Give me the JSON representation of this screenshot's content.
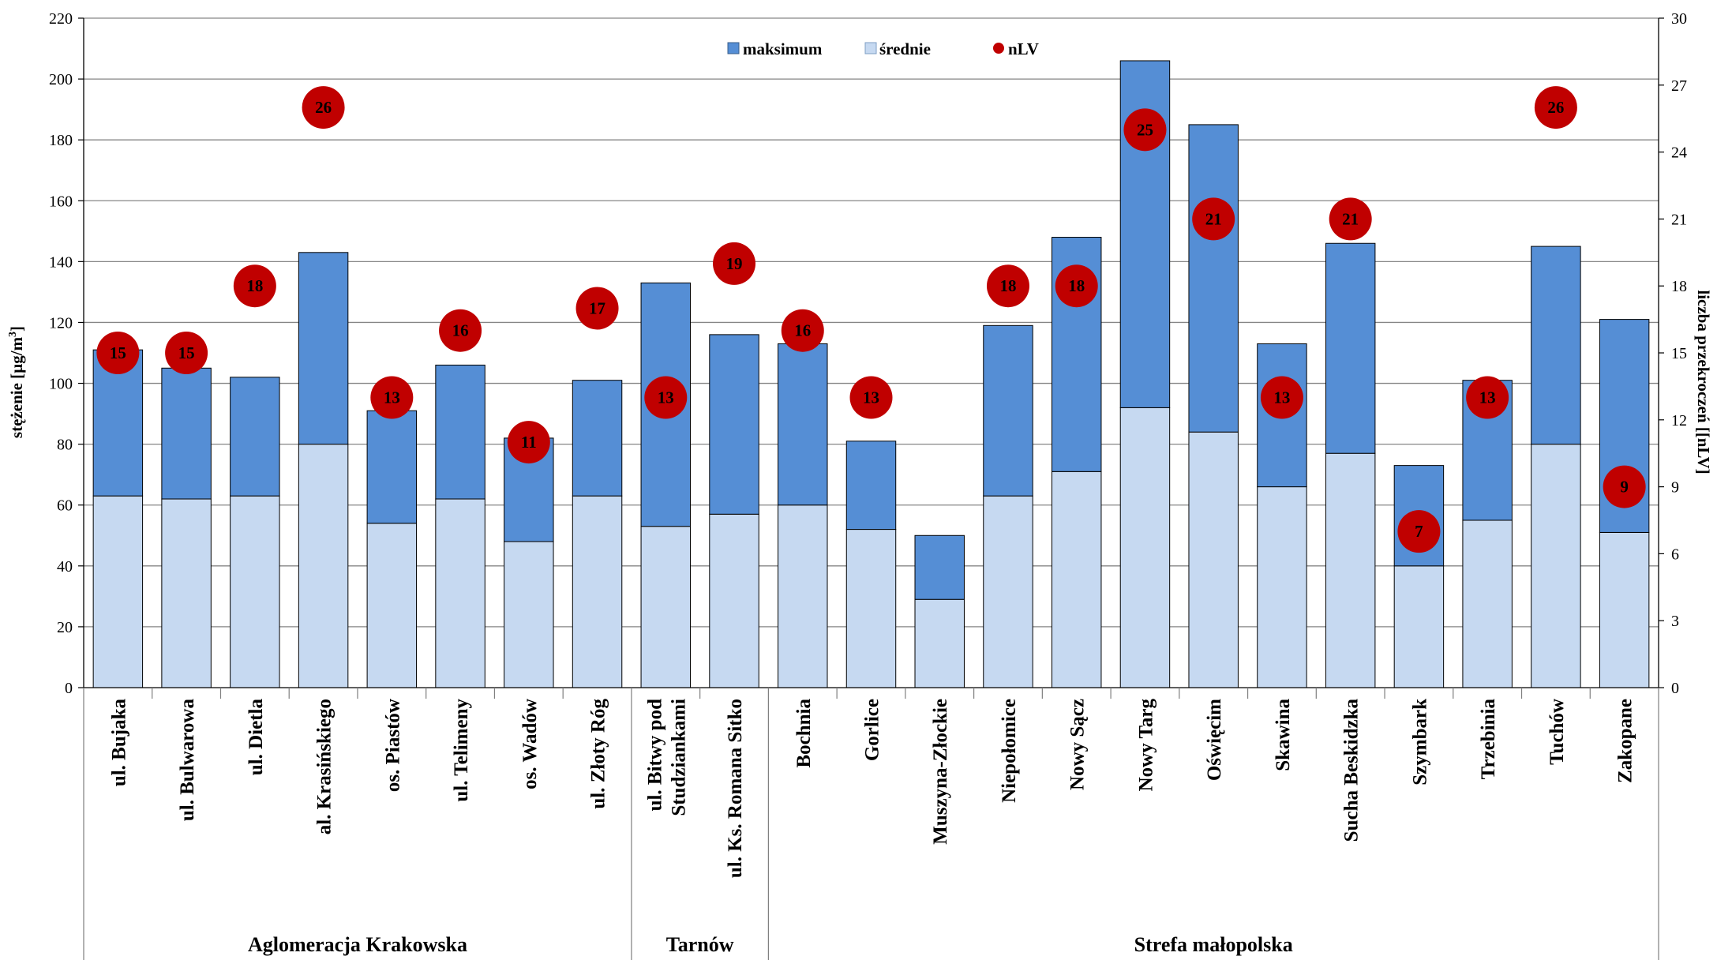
{
  "chart_data": {
    "type": "bar",
    "subtype": "stacked-bar-with-scatter-secondary-axis",
    "categories": [
      "ul. Bujaka",
      "ul. Bulwarowa",
      "ul. Dietla",
      "al. Krasińskiego",
      "os. Piastów",
      "ul. Telimeny",
      "os. Wadów",
      "ul. Złoty Róg",
      "ul. Bitwy pod Studziankami",
      "ul. Ks. Romana Sitko",
      "Bochnia",
      "Gorlice",
      "Muszyna-Złockie",
      "Niepołomice",
      "Nowy Sącz",
      "Nowy Targ",
      "Oświęcim",
      "Skawina",
      "Sucha Beskidzka",
      "Szymbark",
      "Trzebinia",
      "Tuchów",
      "Zakopane"
    ],
    "category_lines": [
      [
        "ul. Bujaka"
      ],
      [
        "ul. Bulwarowa"
      ],
      [
        "ul. Dietla"
      ],
      [
        "al. Krasińskiego"
      ],
      [
        "os. Piastów"
      ],
      [
        "ul. Telimeny"
      ],
      [
        "os. Wadów"
      ],
      [
        "ul. Złoty Róg"
      ],
      [
        "ul. Bitwy pod",
        "Studziankami"
      ],
      [
        "ul. Ks. Romana Sitko"
      ],
      [
        "Bochnia"
      ],
      [
        "Gorlice"
      ],
      [
        "Muszyna-Złockie"
      ],
      [
        "Niepołomice"
      ],
      [
        "Nowy Sącz"
      ],
      [
        "Nowy Targ"
      ],
      [
        "Oświęcim"
      ],
      [
        "Skawina"
      ],
      [
        "Sucha Beskidzka"
      ],
      [
        "Szymbark"
      ],
      [
        "Trzebinia"
      ],
      [
        "Tuchów"
      ],
      [
        "Zakopane"
      ]
    ],
    "groups": [
      {
        "label": "Aglomeracja Krakowska",
        "count": 8
      },
      {
        "label": "Tarnów",
        "count": 2
      },
      {
        "label": "Strefa małopolska",
        "count": 13
      }
    ],
    "series": [
      {
        "name": "maksimum",
        "axis": "left",
        "color": "#558ED5",
        "values": [
          111,
          105,
          102,
          143,
          91,
          106,
          82,
          101,
          133,
          116,
          113,
          81,
          50,
          119,
          148,
          206,
          185,
          113,
          146,
          73,
          101,
          145,
          121
        ]
      },
      {
        "name": "średnie",
        "axis": "left",
        "color": "#C6D9F1",
        "values": [
          63,
          62,
          63,
          80,
          54,
          62,
          48,
          63,
          53,
          57,
          60,
          52,
          29,
          63,
          71,
          92,
          84,
          66,
          77,
          40,
          55,
          80,
          51
        ]
      },
      {
        "name": "nLV",
        "axis": "right",
        "color": "#C00000",
        "values": [
          15,
          15,
          18,
          26,
          13,
          16,
          11,
          17,
          13,
          19,
          16,
          13,
          null,
          18,
          18,
          25,
          21,
          13,
          21,
          7,
          13,
          26,
          9
        ]
      }
    ],
    "ylabel": "stężenie [µg/m3]",
    "ylabel_main": "stężenie [µg/m",
    "ylabel_sup": "3",
    "ylabel_end": "]",
    "y2label": "liczba przekroczeń [[nLV]",
    "ylim": [
      0,
      220
    ],
    "yticks": [
      0,
      20,
      40,
      60,
      80,
      100,
      120,
      140,
      160,
      180,
      200,
      220
    ],
    "y2lim": [
      0,
      30
    ],
    "y2ticks": [
      0,
      3,
      6,
      9,
      12,
      15,
      18,
      21,
      24,
      27,
      30
    ],
    "grid": true,
    "legend_position": "top-center"
  }
}
